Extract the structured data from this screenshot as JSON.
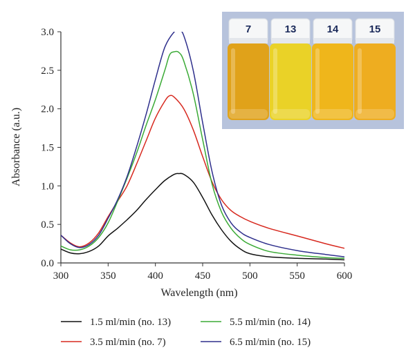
{
  "chart_data": {
    "type": "line",
    "xlabel": "Wavelength (nm)",
    "ylabel": "Absorbance (a.u.)",
    "xlim": [
      300,
      600
    ],
    "ylim": [
      0,
      3.0
    ],
    "xticks": [
      "300",
      "350",
      "400",
      "450",
      "500",
      "550",
      "600"
    ],
    "yticks": [
      "0.0",
      "0.5",
      "1.0",
      "1.5",
      "2.0",
      "2.5",
      "3.0"
    ],
    "grid": false,
    "legend_position": "bottom",
    "series": [
      {
        "name": "1.5 ml/min (no. 13)",
        "color": "#111111",
        "x": [
          300,
          310,
          320,
          330,
          340,
          350,
          360,
          370,
          380,
          390,
          400,
          410,
          420,
          425,
          430,
          440,
          450,
          460,
          470,
          480,
          490,
          500,
          520,
          550,
          580,
          600
        ],
        "y": [
          0.18,
          0.13,
          0.12,
          0.15,
          0.22,
          0.35,
          0.45,
          0.56,
          0.68,
          0.82,
          0.95,
          1.07,
          1.15,
          1.16,
          1.15,
          1.05,
          0.85,
          0.62,
          0.43,
          0.28,
          0.18,
          0.12,
          0.08,
          0.06,
          0.05,
          0.04
        ]
      },
      {
        "name": "3.5 ml/min (no. 7)",
        "color": "#d7281e",
        "x": [
          300,
          310,
          320,
          330,
          340,
          350,
          360,
          370,
          380,
          390,
          400,
          410,
          415,
          420,
          430,
          440,
          450,
          460,
          470,
          480,
          490,
          500,
          520,
          550,
          580,
          600
        ],
        "y": [
          0.36,
          0.26,
          0.21,
          0.26,
          0.39,
          0.6,
          0.8,
          1.0,
          1.28,
          1.58,
          1.88,
          2.1,
          2.17,
          2.15,
          2.0,
          1.73,
          1.38,
          1.05,
          0.82,
          0.68,
          0.6,
          0.54,
          0.45,
          0.35,
          0.25,
          0.19
        ]
      },
      {
        "name": "5.5 ml/min (no. 14)",
        "color": "#3aaa35",
        "x": [
          300,
          310,
          320,
          330,
          340,
          350,
          360,
          370,
          380,
          390,
          400,
          410,
          415,
          420,
          425,
          430,
          440,
          450,
          460,
          470,
          480,
          490,
          500,
          520,
          550,
          580,
          600
        ],
        "y": [
          0.22,
          0.17,
          0.17,
          0.22,
          0.33,
          0.52,
          0.8,
          1.1,
          1.42,
          1.78,
          2.12,
          2.5,
          2.7,
          2.74,
          2.73,
          2.62,
          2.2,
          1.6,
          1.02,
          0.66,
          0.45,
          0.32,
          0.24,
          0.15,
          0.1,
          0.07,
          0.06
        ]
      },
      {
        "name": "6.5 ml/min (no. 15)",
        "color": "#2e2f8c",
        "x": [
          300,
          310,
          320,
          330,
          340,
          350,
          360,
          370,
          380,
          390,
          400,
          410,
          420,
          425,
          430,
          440,
          450,
          460,
          470,
          480,
          490,
          500,
          520,
          550,
          580,
          600
        ],
        "y": [
          0.36,
          0.25,
          0.2,
          0.24,
          0.36,
          0.58,
          0.82,
          1.12,
          1.5,
          1.92,
          2.38,
          2.8,
          3.0,
          3.01,
          2.95,
          2.5,
          1.82,
          1.18,
          0.75,
          0.52,
          0.4,
          0.33,
          0.24,
          0.16,
          0.11,
          0.08
        ]
      }
    ]
  },
  "inset_photo": {
    "vial_labels": [
      "7",
      "13",
      "14",
      "15"
    ],
    "liquid_colors": [
      "#e0a21a",
      "#ead227",
      "#efb61b",
      "#eead20"
    ],
    "background_color": "#b7c3dc"
  }
}
